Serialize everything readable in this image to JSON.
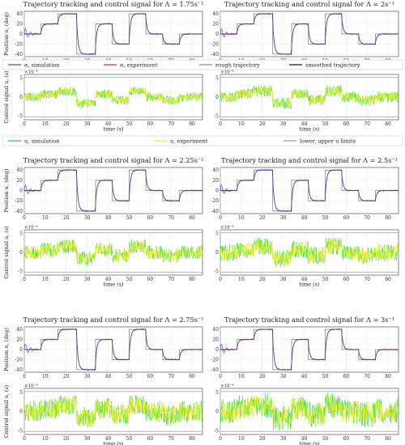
{
  "figure": {
    "legend_alpha": [
      {
        "key": "sim",
        "label": "α, simulation",
        "color": "#2f4fd6"
      },
      {
        "key": "exp",
        "label": "α, experiment",
        "color": "#e0201b"
      },
      {
        "key": "rough",
        "label": "rough trajectory",
        "color": "#8a8a8a"
      },
      {
        "key": "smooth",
        "label": "smoothed trajectory",
        "color": "#111111"
      }
    ],
    "legend_u": [
      {
        "key": "usim",
        "label": "u, simulation",
        "color": "#22d422"
      },
      {
        "key": "uexp",
        "label": "u, experiment",
        "color": "#f2ee12"
      },
      {
        "key": "lim",
        "label": "lower, upper u limits",
        "color": "#999999"
      }
    ]
  },
  "chart_data": [
    {
      "type": "line",
      "title": "Trajectory tracking and control signal for Λ = 1.75s⁻¹",
      "position": {
        "ylabel": "Position α, (deg)",
        "xlabel": "",
        "xlim": [
          0,
          85
        ],
        "ylim": [
          -45,
          45
        ],
        "xticks": [
          "0",
          "10",
          "20",
          "30",
          "40",
          "50",
          "60",
          "70",
          "80"
        ],
        "yticks": [
          "40",
          "20",
          "0",
          "-20",
          "-40"
        ],
        "series": [
          "α, simulation",
          "α, experiment",
          "rough trajectory",
          "smoothed trajectory"
        ],
        "steps": [
          {
            "t": 0,
            "v": 0
          },
          {
            "t": 8,
            "v": 20
          },
          {
            "t": 16,
            "v": 40
          },
          {
            "t": 25,
            "v": -40
          },
          {
            "t": 34,
            "v": 20
          },
          {
            "t": 42,
            "v": -20
          },
          {
            "t": 50,
            "v": 40
          },
          {
            "t": 58,
            "v": 0
          },
          {
            "t": 66,
            "v": -20
          },
          {
            "t": 74,
            "v": 0
          },
          {
            "t": 85,
            "v": 0
          }
        ]
      },
      "control": {
        "ylabel": "Control signal u, (s)",
        "xlabel": "time (s)",
        "xlim": [
          0,
          85
        ],
        "ylim": [
          -6,
          6
        ],
        "exponent": "×10⁻⁴",
        "xticks": [
          "0",
          "10",
          "20",
          "30",
          "40",
          "50",
          "60",
          "70",
          "80"
        ],
        "yticks": [
          "5",
          "0",
          "-5"
        ],
        "series": [
          "u, simulation",
          "u, experiment",
          "lower, upper u limits"
        ],
        "u_limits": [
          -5.2,
          5.2
        ],
        "noise_amplitude": 1.2
      }
    },
    {
      "type": "line",
      "title": "Trajectory tracking and control signal for Λ = 2s⁻¹",
      "position": {
        "ylabel": "",
        "xlabel": "",
        "xlim": [
          0,
          85
        ],
        "ylim": [
          -45,
          45
        ],
        "xticks": [
          "0",
          "10",
          "20",
          "30",
          "40",
          "50",
          "60",
          "70",
          "80"
        ],
        "yticks": [
          "40",
          "20",
          "0",
          "-20",
          "-40"
        ],
        "series": [
          "α, simulation",
          "α, experiment",
          "rough trajectory",
          "smoothed trajectory"
        ],
        "steps": [
          {
            "t": 0,
            "v": 0
          },
          {
            "t": 8,
            "v": 20
          },
          {
            "t": 16,
            "v": 40
          },
          {
            "t": 25,
            "v": -40
          },
          {
            "t": 34,
            "v": 20
          },
          {
            "t": 42,
            "v": -20
          },
          {
            "t": 50,
            "v": 40
          },
          {
            "t": 58,
            "v": 0
          },
          {
            "t": 66,
            "v": -20
          },
          {
            "t": 74,
            "v": 0
          },
          {
            "t": 85,
            "v": 0
          }
        ]
      },
      "control": {
        "ylabel": "",
        "xlabel": "time (s)",
        "xlim": [
          0,
          85
        ],
        "ylim": [
          -6,
          6
        ],
        "exponent": "×10⁻⁴",
        "xticks": [
          "0",
          "10",
          "20",
          "30",
          "40",
          "50",
          "60",
          "70",
          "80"
        ],
        "yticks": [
          "5",
          "0",
          "-5"
        ],
        "series": [
          "u, simulation",
          "u, experiment",
          "lower, upper u limits"
        ],
        "u_limits": [
          -5.2,
          5.2
        ],
        "noise_amplitude": 1.5
      }
    },
    {
      "type": "line",
      "title": "Trajectory tracking and control signal for Λ = 2.25s⁻¹",
      "position": {
        "ylabel": "Position α, (deg)",
        "xlabel": "",
        "xlim": [
          0,
          85
        ],
        "ylim": [
          -45,
          45
        ],
        "xticks": [
          "0",
          "10",
          "20",
          "30",
          "40",
          "50",
          "60",
          "70",
          "80"
        ],
        "yticks": [
          "40",
          "20",
          "0",
          "-20",
          "-40"
        ],
        "series": [
          "α, simulation",
          "α, experiment",
          "rough trajectory",
          "smoothed trajectory"
        ],
        "steps": [
          {
            "t": 0,
            "v": 0
          },
          {
            "t": 8,
            "v": 20
          },
          {
            "t": 16,
            "v": 40
          },
          {
            "t": 25,
            "v": -40
          },
          {
            "t": 34,
            "v": 20
          },
          {
            "t": 42,
            "v": -20
          },
          {
            "t": 50,
            "v": 40
          },
          {
            "t": 58,
            "v": 0
          },
          {
            "t": 66,
            "v": -20
          },
          {
            "t": 74,
            "v": 0
          },
          {
            "t": 85,
            "v": 0
          }
        ]
      },
      "control": {
        "ylabel": "Control signal u, (s)",
        "xlabel": "time (s)",
        "xlim": [
          0,
          85
        ],
        "ylim": [
          -6,
          6
        ],
        "exponent": "×10⁻⁴",
        "xticks": [
          "0",
          "10",
          "20",
          "30",
          "40",
          "50",
          "60",
          "70",
          "80"
        ],
        "yticks": [
          "5",
          "0",
          "-5"
        ],
        "series": [
          "u, simulation",
          "u, experiment",
          "lower, upper u limits"
        ],
        "u_limits": [
          -5.2,
          5.2
        ],
        "noise_amplitude": 1.9
      }
    },
    {
      "type": "line",
      "title": "Trajectory tracking and control signal for Λ = 2.5s⁻¹",
      "position": {
        "ylabel": "",
        "xlabel": "",
        "xlim": [
          0,
          85
        ],
        "ylim": [
          -45,
          45
        ],
        "xticks": [
          "0",
          "10",
          "20",
          "30",
          "40",
          "50",
          "60",
          "70",
          "80"
        ],
        "yticks": [
          "40",
          "20",
          "0",
          "-20",
          "-40"
        ],
        "series": [
          "α, simulation",
          "α, experiment",
          "rough trajectory",
          "smoothed trajectory"
        ],
        "steps": [
          {
            "t": 0,
            "v": 0
          },
          {
            "t": 8,
            "v": 20
          },
          {
            "t": 16,
            "v": 40
          },
          {
            "t": 25,
            "v": -40
          },
          {
            "t": 34,
            "v": 20
          },
          {
            "t": 42,
            "v": -20
          },
          {
            "t": 50,
            "v": 40
          },
          {
            "t": 58,
            "v": 0
          },
          {
            "t": 66,
            "v": -20
          },
          {
            "t": 74,
            "v": 0
          },
          {
            "t": 85,
            "v": 0
          }
        ]
      },
      "control": {
        "ylabel": "",
        "xlabel": "time (s)",
        "xlim": [
          0,
          85
        ],
        "ylim": [
          -6,
          6
        ],
        "exponent": "×10⁻⁴",
        "xticks": [
          "0",
          "10",
          "20",
          "30",
          "40",
          "50",
          "60",
          "70",
          "80"
        ],
        "yticks": [
          "5",
          "0",
          "-5"
        ],
        "series": [
          "u, simulation",
          "u, experiment",
          "lower, upper u limits"
        ],
        "u_limits": [
          -5.2,
          5.2
        ],
        "noise_amplitude": 2.3
      }
    },
    {
      "type": "line",
      "title": "Trajectory tracking and control signal for Λ = 2.75s⁻¹",
      "position": {
        "ylabel": "Position α, (deg)",
        "xlabel": "",
        "xlim": [
          0,
          85
        ],
        "ylim": [
          -45,
          45
        ],
        "xticks": [
          "0",
          "10",
          "20",
          "30",
          "40",
          "50",
          "60",
          "70",
          "80"
        ],
        "yticks": [
          "40",
          "20",
          "0",
          "-20",
          "-40"
        ],
        "series": [
          "α, simulation",
          "α, experiment",
          "rough trajectory",
          "smoothed trajectory"
        ],
        "steps": [
          {
            "t": 0,
            "v": 0
          },
          {
            "t": 8,
            "v": 20
          },
          {
            "t": 16,
            "v": 40
          },
          {
            "t": 25,
            "v": -40
          },
          {
            "t": 34,
            "v": 20
          },
          {
            "t": 42,
            "v": -20
          },
          {
            "t": 50,
            "v": 40
          },
          {
            "t": 58,
            "v": 0
          },
          {
            "t": 66,
            "v": -20
          },
          {
            "t": 74,
            "v": 0
          },
          {
            "t": 85,
            "v": 0
          }
        ]
      },
      "control": {
        "ylabel": "Control signal u, (s)",
        "xlabel": "time (s)",
        "xlim": [
          0,
          85
        ],
        "ylim": [
          -6,
          6
        ],
        "exponent": "×10⁻⁴",
        "xticks": [
          "0",
          "10",
          "20",
          "30",
          "40",
          "50",
          "60",
          "70",
          "80"
        ],
        "yticks": [
          "5",
          "0",
          "-5"
        ],
        "series": [
          "u, simulation",
          "u, experiment",
          "lower, upper u limits"
        ],
        "u_limits": [
          -5.2,
          5.2
        ],
        "noise_amplitude": 2.8
      }
    },
    {
      "type": "line",
      "title": "Trajectory tracking and control signal for Λ = 3s⁻¹",
      "position": {
        "ylabel": "",
        "xlabel": "",
        "xlim": [
          0,
          85
        ],
        "ylim": [
          -45,
          45
        ],
        "xticks": [
          "0",
          "10",
          "20",
          "30",
          "40",
          "50",
          "60",
          "70",
          "80"
        ],
        "yticks": [
          "40",
          "20",
          "0",
          "-20",
          "-40"
        ],
        "series": [
          "α, simulation",
          "α, experiment",
          "rough trajectory",
          "smoothed trajectory"
        ],
        "steps": [
          {
            "t": 0,
            "v": 0
          },
          {
            "t": 8,
            "v": 20
          },
          {
            "t": 16,
            "v": 40
          },
          {
            "t": 25,
            "v": -40
          },
          {
            "t": 34,
            "v": 20
          },
          {
            "t": 42,
            "v": -20
          },
          {
            "t": 50,
            "v": 40
          },
          {
            "t": 58,
            "v": 0
          },
          {
            "t": 66,
            "v": -20
          },
          {
            "t": 74,
            "v": 0
          },
          {
            "t": 85,
            "v": 0
          }
        ]
      },
      "control": {
        "ylabel": "",
        "xlabel": "time (s)",
        "xlim": [
          0,
          85
        ],
        "ylim": [
          -6,
          6
        ],
        "exponent": "×10⁻⁴",
        "xticks": [
          "0",
          "10",
          "20",
          "30",
          "40",
          "50",
          "60",
          "70",
          "80"
        ],
        "yticks": [
          "5",
          "0",
          "-5"
        ],
        "series": [
          "u, simulation",
          "u, experiment",
          "lower, upper u limits"
        ],
        "u_limits": [
          -5.2,
          5.2
        ],
        "noise_amplitude": 3.3
      }
    }
  ]
}
